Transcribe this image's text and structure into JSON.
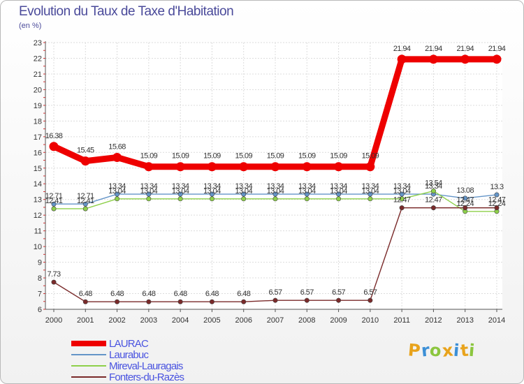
{
  "title": "Evolution du Taux de Taxe d'Habitation",
  "subtitle": "(en %)",
  "logo": {
    "text": "Proxiti",
    "letters": [
      {
        "ch": "P",
        "color": "#e8a31c"
      },
      {
        "ch": "r",
        "color": "#3c8fd6"
      },
      {
        "ch": "o",
        "color": "#8cc63f"
      },
      {
        "ch": "x",
        "color": "#e8a31c"
      },
      {
        "ch": "i",
        "color": "#3c8fd6"
      },
      {
        "ch": "t",
        "color": "#e8a31c"
      },
      {
        "ch": "i",
        "color": "#8cc63f"
      }
    ]
  },
  "chart_data": {
    "type": "line",
    "title": "Evolution du Taux de Taxe d'Habitation",
    "subtitle": "(en %)",
    "x": [
      "2000",
      "2001",
      "2002",
      "2003",
      "2004",
      "2005",
      "2006",
      "2007",
      "2008",
      "2009",
      "2010",
      "2011",
      "2012",
      "2013",
      "2014"
    ],
    "ylim": [
      6,
      23
    ],
    "yticks": [
      6,
      7,
      8,
      9,
      10,
      11,
      12,
      13,
      14,
      15,
      16,
      17,
      18,
      19,
      20,
      21,
      22,
      23
    ],
    "grid": true,
    "legend_position": "bottom-left",
    "series": [
      {
        "name": "LAURAC",
        "color": "#ee0000",
        "emphasis": true,
        "values": [
          16.38,
          15.45,
          15.68,
          15.09,
          15.09,
          15.09,
          15.09,
          15.09,
          15.09,
          15.09,
          15.09,
          21.94,
          21.94,
          21.94,
          21.94
        ],
        "labels": [
          "16.38",
          "15.45",
          "15.68",
          "15.09",
          "15.09",
          "15.09",
          "15.09",
          "15.09",
          "15.09",
          "15.09",
          "15.09",
          "21.94",
          "21.94",
          "21.94",
          "21.94"
        ]
      },
      {
        "name": "Laurabuc",
        "color": "#6495c8",
        "values": [
          12.71,
          12.71,
          13.34,
          13.34,
          13.34,
          13.34,
          13.34,
          13.34,
          13.34,
          13.34,
          13.34,
          13.34,
          13.34,
          13.08,
          13.3
        ],
        "labels": [
          "12.71",
          "12.71",
          "13.34",
          "13.34",
          "13.34",
          "13.34",
          "13.34",
          "13.34",
          "13.34",
          "13.34",
          "13.34",
          "13.34",
          "13.34",
          "13.08",
          "13.3"
        ]
      },
      {
        "name": "Mireval-Lauragais",
        "color": "#8ed04a",
        "values": [
          12.41,
          12.41,
          13.04,
          13.04,
          13.04,
          13.04,
          13.04,
          13.04,
          13.04,
          13.04,
          13.04,
          13.04,
          13.54,
          12.24,
          12.24
        ],
        "labels": [
          "12.41",
          "12.41",
          "13.04",
          "13.04",
          "13.04",
          "13.04",
          "13.04",
          "13.04",
          "13.04",
          "13.04",
          "13.04",
          "13.04",
          "13.54",
          "12.24",
          "12.24"
        ]
      },
      {
        "name": "Fonters-du-Razès",
        "color": "#7a2a2a",
        "values": [
          7.73,
          6.48,
          6.48,
          6.48,
          6.48,
          6.48,
          6.48,
          6.57,
          6.57,
          6.57,
          6.57,
          12.47,
          12.47,
          12.47,
          12.47
        ],
        "labels": [
          "7.73",
          "6.48",
          "6.48",
          "6.48",
          "6.48",
          "6.48",
          "6.48",
          "6.57",
          "6.57",
          "6.57",
          "6.57",
          "12.47",
          "12.47",
          "12.47",
          "12.47"
        ]
      }
    ]
  }
}
